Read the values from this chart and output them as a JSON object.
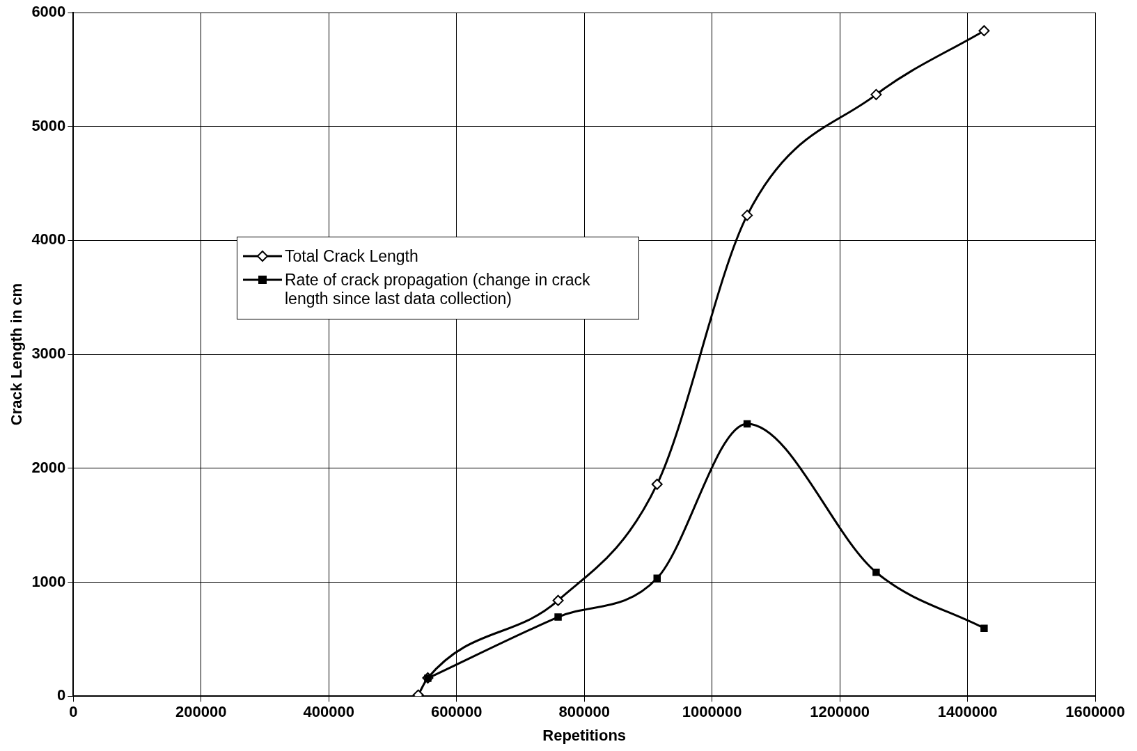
{
  "chart_data": {
    "type": "line",
    "xlabel": "Repetitions",
    "ylabel": "Crack Length in cm",
    "xlim": [
      0,
      1600000
    ],
    "xticks": [
      0,
      200000,
      400000,
      600000,
      800000,
      1000000,
      1200000,
      1400000,
      1600000
    ],
    "ylim": [
      0,
      6000
    ],
    "yticks": [
      0,
      1000,
      2000,
      3000,
      4000,
      5000,
      6000
    ],
    "grid": true,
    "legend": "left",
    "line_style": "solid",
    "series": [
      {
        "name": "Total Crack Length",
        "color": "#000000",
        "marker": "diamond",
        "x": [
          540000,
          555000,
          759000,
          914000,
          1055000,
          1257000,
          1426000
        ],
        "values": [
          10,
          160,
          840,
          1860,
          4220,
          5280,
          5840
        ]
      },
      {
        "name": "Rate of crack propagation (change in crack length since last data collection)",
        "color": "#000000",
        "marker": "square",
        "x": [
          555000,
          759000,
          914000,
          1055000,
          1257000,
          1426000
        ],
        "values": [
          157,
          694,
          1035,
          2390,
          1087,
          596
        ]
      }
    ]
  }
}
